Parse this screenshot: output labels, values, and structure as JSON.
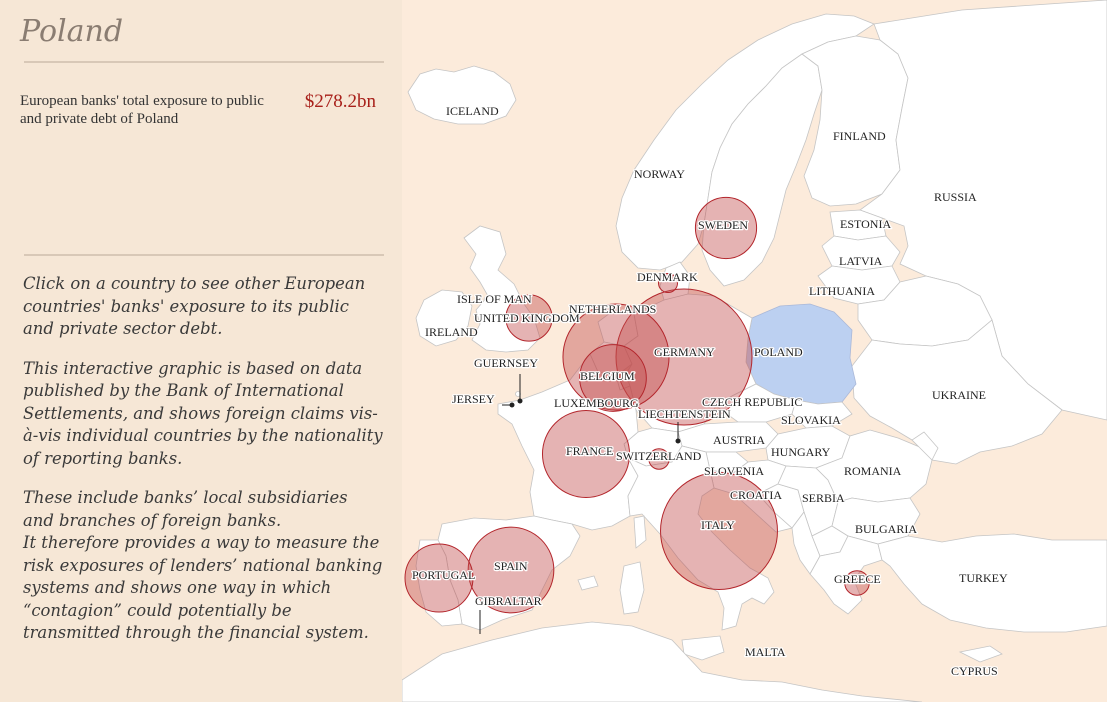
{
  "sidebar": {
    "country": "Poland",
    "exposure_label": "European banks' total exposure to public and private debt of Poland",
    "exposure_value": "$278.2bn",
    "paragraphs": [
      "Click on a country to see other European countries' banks' exposure to its public and private sector debt.",
      "This interactive graphic is based on data published by the Bank of International Settlements, and shows foreign claims vis-à-vis individual countries by the nationality of reporting banks.",
      "These include banks’ local subsidiaries and branches of foreign banks.\nIt therefore provides a way to measure the risk exposures of lenders’ national banking systems and shows one way in which “contagion” could potentially be transmitted through the financial system."
    ]
  },
  "map": {
    "selected_country": "POLAND",
    "colors": {
      "land": "#ffffff",
      "sea": "#fcebdb",
      "selected": "#bcd0f1",
      "bubble": "#c24a4a",
      "bubble_stroke": "#b3262c"
    },
    "labels": [
      "ICELAND",
      "NORWAY",
      "FINLAND",
      "RUSSIA",
      "SWEDEN",
      "ESTONIA",
      "LATVIA",
      "DENMARK",
      "LITHUANIA",
      "ISLE OF MAN",
      "NETHERLANDS",
      "UNITED KINGDOM",
      "IRELAND",
      "GERMANY",
      "POLAND",
      "GUERNSEY",
      "BELGIUM",
      "JERSEY",
      "LUXEMBOURG",
      "CZECH REPUBLIC",
      "LIECHTENSTEIN",
      "SLOVAKIA",
      "UKRAINE",
      "AUSTRIA",
      "FRANCE",
      "SWITZERLAND",
      "HUNGARY",
      "SLOVENIA",
      "ROMANIA",
      "CROATIA",
      "SERBIA",
      "ITALY",
      "BULGARIA",
      "PORTUGAL",
      "SPAIN",
      "GREECE",
      "TURKEY",
      "GIBRALTAR",
      "MALTA",
      "CYPRUS"
    ],
    "bubbles": [
      {
        "country": "GERMANY",
        "size": 1.0
      },
      {
        "country": "ITALY",
        "size": 0.86
      },
      {
        "country": "NETHERLANDS",
        "size": 0.78
      },
      {
        "country": "FRANCE",
        "size": 0.64
      },
      {
        "country": "SPAIN",
        "size": 0.63
      },
      {
        "country": "BELGIUM",
        "size": 0.49
      },
      {
        "country": "PORTUGAL",
        "size": 0.5
      },
      {
        "country": "SWEDEN",
        "size": 0.45
      },
      {
        "country": "UNITED KINGDOM",
        "size": 0.34
      },
      {
        "country": "GREECE",
        "size": 0.18
      },
      {
        "country": "SWITZERLAND",
        "size": 0.15
      },
      {
        "country": "DENMARK",
        "size": 0.14
      }
    ]
  }
}
